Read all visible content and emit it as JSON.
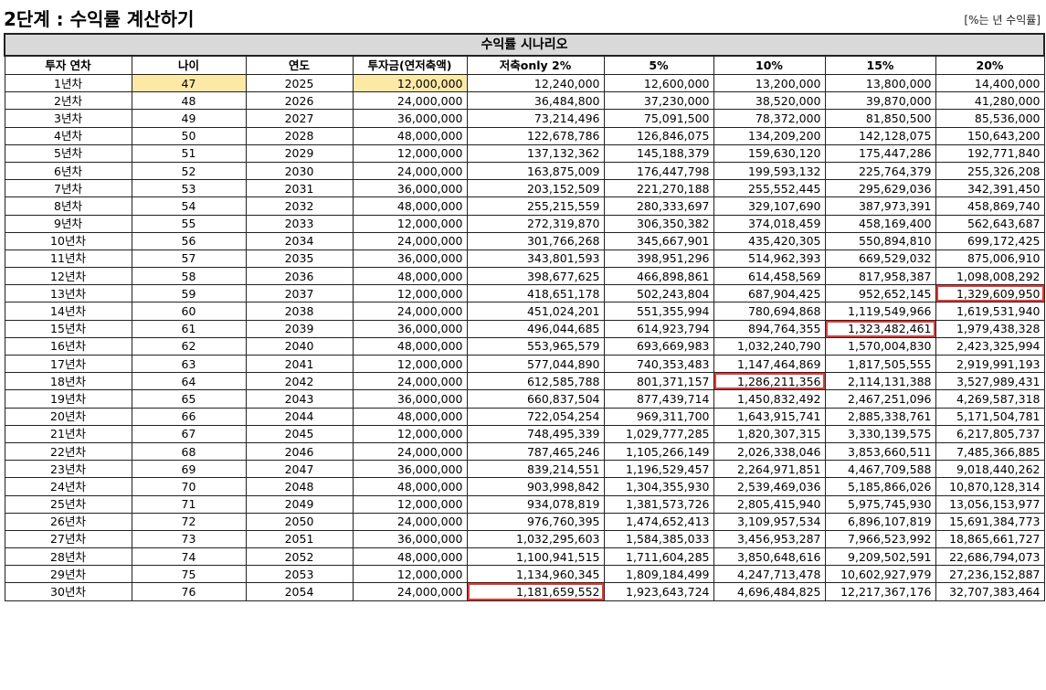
{
  "title": "2단계 : 수익률 계산하기",
  "unit_note": "[%는 년 수익률]",
  "scenario_header": "수익률 시나리오",
  "columns": [
    "투자 연차",
    "나이",
    "연도",
    "투자금(연저축액)",
    "저축only 2%",
    "5%",
    "10%",
    "15%",
    "20%"
  ],
  "rows": [
    [
      "1년차",
      "47",
      "2025",
      "12,000,000",
      "12,240,000",
      "12,600,000",
      "13,200,000",
      "13,800,000",
      "14,400,000"
    ],
    [
      "2년차",
      "48",
      "2026",
      "24,000,000",
      "36,484,800",
      "37,230,000",
      "38,520,000",
      "39,870,000",
      "41,280,000"
    ],
    [
      "3년차",
      "49",
      "2027",
      "36,000,000",
      "73,214,496",
      "75,091,500",
      "78,372,000",
      "81,850,500",
      "85,536,000"
    ],
    [
      "4년차",
      "50",
      "2028",
      "48,000,000",
      "122,678,786",
      "126,846,075",
      "134,209,200",
      "142,128,075",
      "150,643,200"
    ],
    [
      "5년차",
      "51",
      "2029",
      "12,000,000",
      "137,132,362",
      "145,188,379",
      "159,630,120",
      "175,447,286",
      "192,771,840"
    ],
    [
      "6년차",
      "52",
      "2030",
      "24,000,000",
      "163,875,009",
      "176,447,798",
      "199,593,132",
      "225,764,379",
      "255,326,208"
    ],
    [
      "7년차",
      "53",
      "2031",
      "36,000,000",
      "203,152,509",
      "221,270,188",
      "255,552,445",
      "295,629,036",
      "342,391,450"
    ],
    [
      "8년차",
      "54",
      "2032",
      "48,000,000",
      "255,215,559",
      "280,333,697",
      "329,107,690",
      "387,973,391",
      "458,869,740"
    ],
    [
      "9년차",
      "55",
      "2033",
      "12,000,000",
      "272,319,870",
      "306,350,382",
      "374,018,459",
      "458,169,400",
      "562,643,687"
    ],
    [
      "10년차",
      "56",
      "2034",
      "24,000,000",
      "301,766,268",
      "345,667,901",
      "435,420,305",
      "550,894,810",
      "699,172,425"
    ],
    [
      "11년차",
      "57",
      "2035",
      "36,000,000",
      "343,801,593",
      "398,951,296",
      "514,962,393",
      "669,529,032",
      "875,006,910"
    ],
    [
      "12년차",
      "58",
      "2036",
      "48,000,000",
      "398,677,625",
      "466,898,861",
      "614,458,569",
      "817,958,387",
      "1,098,008,292"
    ],
    [
      "13년차",
      "59",
      "2037",
      "12,000,000",
      "418,651,178",
      "502,243,804",
      "687,904,425",
      "952,652,145",
      "1,329,609,950"
    ],
    [
      "14년차",
      "60",
      "2038",
      "24,000,000",
      "451,024,201",
      "551,355,994",
      "780,694,868",
      "1,119,549,966",
      "1,619,531,940"
    ],
    [
      "15년차",
      "61",
      "2039",
      "36,000,000",
      "496,044,685",
      "614,923,794",
      "894,764,355",
      "1,323,482,461",
      "1,979,438,328"
    ],
    [
      "16년차",
      "62",
      "2040",
      "48,000,000",
      "553,965,579",
      "693,669,983",
      "1,032,240,790",
      "1,570,004,830",
      "2,423,325,994"
    ],
    [
      "17년차",
      "63",
      "2041",
      "12,000,000",
      "577,044,890",
      "740,353,483",
      "1,147,464,869",
      "1,817,505,555",
      "2,919,991,193"
    ],
    [
      "18년차",
      "64",
      "2042",
      "24,000,000",
      "612,585,788",
      "801,371,157",
      "1,286,211,356",
      "2,114,131,388",
      "3,527,989,431"
    ],
    [
      "19년차",
      "65",
      "2043",
      "36,000,000",
      "660,837,504",
      "877,439,714",
      "1,450,832,492",
      "2,467,251,096",
      "4,269,587,318"
    ],
    [
      "20년차",
      "66",
      "2044",
      "48,000,000",
      "722,054,254",
      "969,311,700",
      "1,643,915,741",
      "2,885,338,761",
      "5,171,504,781"
    ],
    [
      "21년차",
      "67",
      "2045",
      "12,000,000",
      "748,495,339",
      "1,029,777,285",
      "1,820,307,315",
      "3,330,139,575",
      "6,217,805,737"
    ],
    [
      "22년차",
      "68",
      "2046",
      "24,000,000",
      "787,465,246",
      "1,105,266,149",
      "2,026,338,046",
      "3,853,660,511",
      "7,485,366,885"
    ],
    [
      "23년차",
      "69",
      "2047",
      "36,000,000",
      "839,214,551",
      "1,196,529,457",
      "2,264,971,851",
      "4,467,709,588",
      "9,018,440,262"
    ],
    [
      "24년차",
      "70",
      "2048",
      "48,000,000",
      "903,998,842",
      "1,304,355,930",
      "2,539,469,036",
      "5,185,866,026",
      "10,870,128,314"
    ],
    [
      "25년차",
      "71",
      "2049",
      "12,000,000",
      "934,078,819",
      "1,381,573,726",
      "2,805,415,940",
      "5,975,745,930",
      "13,056,153,977"
    ],
    [
      "26년차",
      "72",
      "2050",
      "24,000,000",
      "976,760,395",
      "1,474,652,413",
      "3,109,957,534",
      "6,896,107,819",
      "15,691,384,773"
    ],
    [
      "27년차",
      "73",
      "2051",
      "36,000,000",
      "1,032,295,603",
      "1,584,385,033",
      "3,456,953,287",
      "7,966,523,992",
      "18,865,661,727"
    ],
    [
      "28년차",
      "74",
      "2052",
      "48,000,000",
      "1,100,941,515",
      "1,711,604,285",
      "3,850,648,616",
      "9,209,502,591",
      "22,686,794,073"
    ],
    [
      "29년차",
      "75",
      "2053",
      "12,000,000",
      "1,134,960,345",
      "1,809,184,499",
      "4,247,713,478",
      "10,602,927,979",
      "27,236,152,887"
    ],
    [
      "30년차",
      "76",
      "2054",
      "24,000,000",
      "1,181,659,552",
      "1,923,643,724",
      "4,696,484,825",
      "12,217,367,176",
      "32,707,383,464"
    ]
  ],
  "highlight": {
    "input_fill": "#fde9a6",
    "mark_outline": "#e53935",
    "input_cells": [
      [
        0,
        1
      ],
      [
        0,
        3
      ]
    ],
    "marked_cells": [
      [
        12,
        8
      ],
      [
        14,
        7
      ],
      [
        17,
        6
      ],
      [
        29,
        4
      ]
    ]
  }
}
